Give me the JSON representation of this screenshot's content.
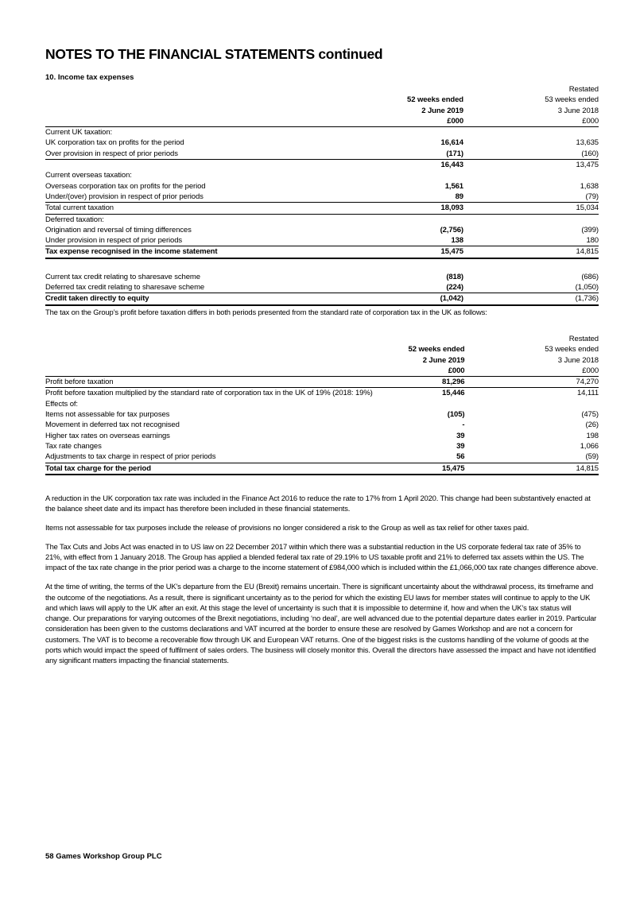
{
  "title": "NOTES TO THE FINANCIAL STATEMENTS continued",
  "section": "10.  Income tax expenses",
  "header": {
    "restated": "Restated",
    "col1_l1": "52 weeks ended",
    "col2_l1": "53 weeks ended",
    "col1_l2": "2 June 2019",
    "col2_l2": "3 June 2018",
    "col1_l3": "£000",
    "col2_l3": "£000"
  },
  "table1": [
    {
      "label": "Current UK taxation:",
      "v1": "",
      "v2": ""
    },
    {
      "label": "UK corporation tax on profits for the period",
      "v1": "16,614",
      "v2": "13,635"
    },
    {
      "label": "Over provision in respect of prior periods",
      "v1": "(171)",
      "v2": "(160)"
    },
    {
      "label": "",
      "v1": "16,443",
      "v2": "13,475"
    },
    {
      "label": "Current overseas taxation:",
      "v1": "",
      "v2": ""
    },
    {
      "label": "Overseas corporation tax on profits for the period",
      "v1": "1,561",
      "v2": "1,638"
    },
    {
      "label": "Under/(over) provision in respect of prior periods",
      "v1": "89",
      "v2": "(79)"
    },
    {
      "label": "Total current taxation",
      "v1": "18,093",
      "v2": "15,034"
    },
    {
      "label": "Deferred taxation:",
      "v1": "",
      "v2": ""
    },
    {
      "label": "Origination and reversal of timing differences",
      "v1": "(2,756)",
      "v2": "(399)"
    },
    {
      "label": "Under provision in respect of prior periods",
      "v1": "138",
      "v2": "180"
    },
    {
      "label": "Tax expense recognised in the income statement",
      "v1": "15,475",
      "v2": "14,815"
    },
    {
      "label": "Current tax credit relating to sharesave scheme",
      "v1": "(818)",
      "v2": "(686)"
    },
    {
      "label": "Deferred tax credit relating to sharesave scheme",
      "v1": "(224)",
      "v2": "(1,050)"
    },
    {
      "label": "Credit taken directly to equity",
      "v1": "(1,042)",
      "v2": "(1,736)"
    }
  ],
  "intro2": "The tax on the Group’s profit before taxation differs in both periods presented from the standard rate of corporation tax in the UK as follows:",
  "table2": [
    {
      "label": "Profit before taxation",
      "v1": "81,296",
      "v2": "74,270"
    },
    {
      "label": "Profit before taxation multiplied by the standard rate of corporation tax in the UK of 19% (2018: 19%)",
      "v1": "15,446",
      "v2": "14,111"
    },
    {
      "label": "Effects of:",
      "v1": "",
      "v2": ""
    },
    {
      "label": "Items not assessable for tax purposes",
      "v1": "(105)",
      "v2": "(475)"
    },
    {
      "label": "Movement in deferred tax not recognised",
      "v1": "-",
      "v2": "(26)"
    },
    {
      "label": "Higher tax rates on overseas earnings",
      "v1": "39",
      "v2": "198"
    },
    {
      "label": "Tax rate changes",
      "v1": "39",
      "v2": "1,066"
    },
    {
      "label": "Adjustments to tax charge in respect of prior periods",
      "v1": "56",
      "v2": "(59)"
    },
    {
      "label": "Total tax charge for the period",
      "v1": "15,475",
      "v2": "14,815"
    }
  ],
  "paragraphs": [
    "A reduction in the UK corporation tax rate was included in the Finance Act 2016 to reduce the rate to 17% from 1 April 2020. This change had been substantively enacted at the balance sheet date and its impact has therefore been included in these financial statements.",
    "Items not assessable for tax purposes include the release of provisions no longer considered a risk to the Group as well as tax relief for other taxes paid.",
    "The Tax Cuts and Jobs Act was enacted in to US law on 22 December 2017 within which there was a substantial reduction in the US corporate federal tax rate of 35% to 21%, with effect from 1 January 2018. The Group has applied a blended federal tax rate of 29.19% to US taxable profit and 21% to deferred tax assets within the US. The impact of the tax rate change in the prior period was a charge to the income statement of £984,000 which is included within the £1,066,000 tax rate changes difference above.",
    "At the time of writing, the terms of the UK's departure from the EU (Brexit) remains uncertain. There is significant uncertainty about the withdrawal process, its timeframe and the outcome of the negotiations. As a result, there is significant uncertainty as to the period for which the existing EU laws for member states will continue to apply to the UK and which laws will apply to the UK after an exit. At this stage the level of uncertainty is such that it is impossible to determine if, how and when the UK’s tax status will change. Our preparations for varying outcomes of the Brexit negotiations, including ‘no deal’, are well advanced due to the potential departure dates earlier in 2019. Particular consideration has been given to the customs declarations and VAT incurred at the border to ensure these are resolved by Games Workshop and are not a concern for customers. The VAT is to become a recoverable flow through UK and European VAT returns. One of the biggest risks is the customs handling of the volume of goods at the ports which would impact the speed of fulfilment of sales orders. The business will closely monitor this. Overall the directors have assessed the impact and have not identified any significant matters impacting the financial statements."
  ],
  "footer": "58 Games Workshop Group PLC"
}
